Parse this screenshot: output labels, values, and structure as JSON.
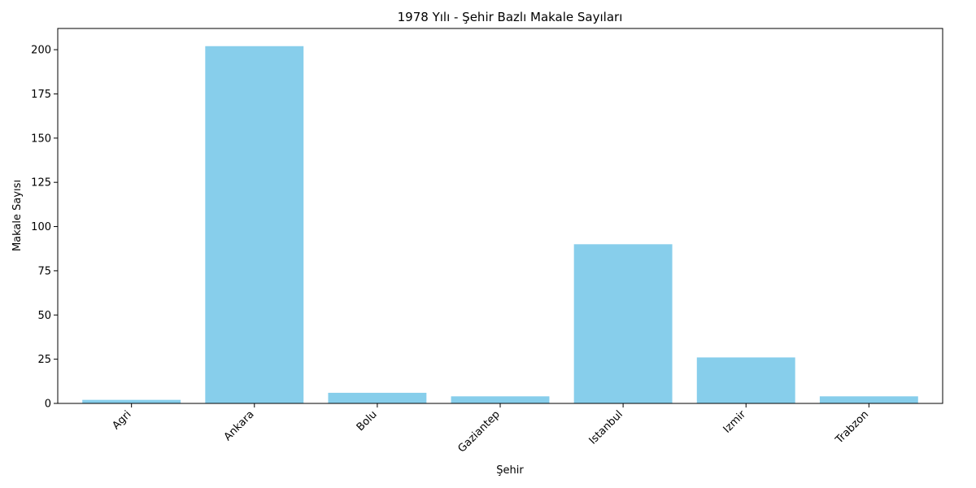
{
  "chart_data": {
    "type": "bar",
    "title": "1978 Yılı - Şehir Bazlı Makale Sayıları",
    "xlabel": "Şehir",
    "ylabel": "Makale Sayısı",
    "categories": [
      "Agri",
      "Ankara",
      "Bolu",
      "Gaziantep",
      "Istanbul",
      "Izmir",
      "Trabzon"
    ],
    "values": [
      2,
      202,
      6,
      4,
      90,
      26,
      4
    ],
    "ylim": [
      0,
      212
    ],
    "yticks": [
      0,
      25,
      50,
      75,
      100,
      125,
      150,
      175,
      200
    ],
    "bar_color": "#87ceeb",
    "grid": false,
    "legend": "none"
  }
}
